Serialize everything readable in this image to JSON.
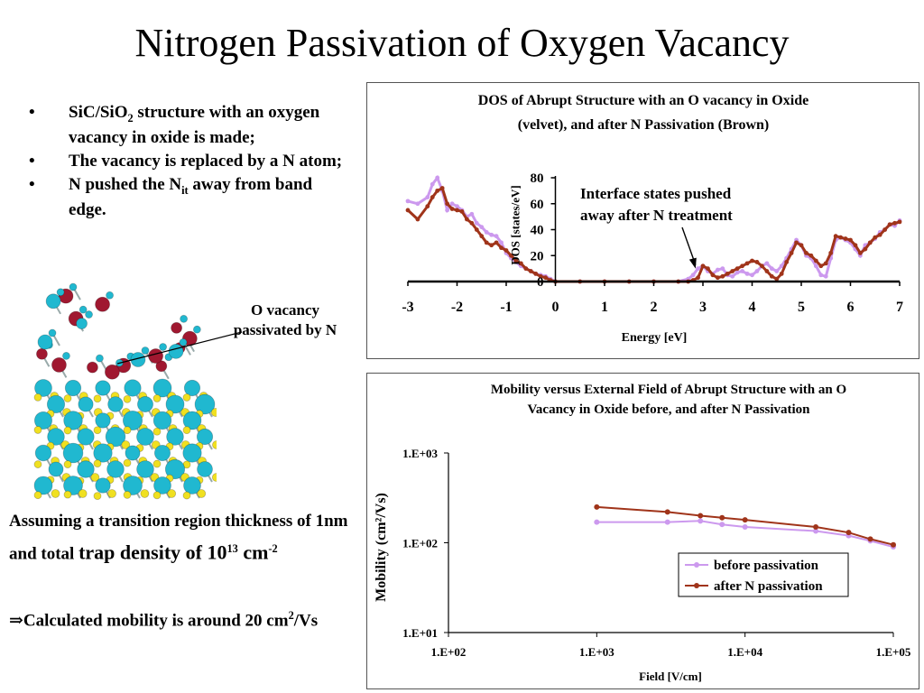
{
  "slide": {
    "title": "Nitrogen Passivation of Oxygen Vacancy",
    "bullets": [
      {
        "pre": "SiC/SiO",
        "sub": "2",
        "post": " structure with an oxygen vacancy in oxide is made;"
      },
      {
        "pre": "The vacancy is replaced by a N atom;",
        "sub": "",
        "post": ""
      },
      {
        "pre": "N pushed the N",
        "sub": "it",
        "post": " away from band edge."
      }
    ],
    "bullet_symbol": "•",
    "callout": "O vacancy passivated by N",
    "assumption": {
      "part1": "Assuming a transition region thickness of 1nm and total ",
      "part2": "trap density of 10",
      "sup": "13",
      "part3": " cm",
      "unit_sup": "-2"
    },
    "result": {
      "arrow": "⇒",
      "text": "Calculated mobility is around 20 cm",
      "sup": "2",
      "unit": "/Vs"
    }
  },
  "colors": {
    "velvet": "#cc99ee",
    "brown": "#a0341a",
    "si": "#f0e020",
    "c": "#20b8d0",
    "o": "#a01830"
  },
  "chart_data": [
    {
      "type": "line",
      "title": "DOS of Abrupt Structure with an O vacancy in Oxide (velvet), and after N Passivation (Brown)",
      "title_lines": [
        "DOS of Abrupt Structure with an O vacancy in Oxide",
        "(velvet), and after N Passivation (Brown)"
      ],
      "xlabel": "Energy [eV]",
      "ylabel": "DOS [states/eV]",
      "xlim": [
        -3,
        7
      ],
      "ylim": [
        0,
        80
      ],
      "xticks": [
        -3,
        -2,
        -1,
        0,
        1,
        2,
        3,
        4,
        5,
        6,
        7
      ],
      "yticks": [
        0,
        20,
        40,
        60,
        80
      ],
      "annotation": {
        "lines": [
          "Interface states pushed",
          "away after N treatment"
        ],
        "arrow_to": [
          2.85,
          10
        ]
      },
      "series": [
        {
          "color_key": "velvet",
          "x": [
            -3,
            -2.8,
            -2.6,
            -2.5,
            -2.4,
            -2.3,
            -2.2,
            -2.1,
            -2.0,
            -1.9,
            -1.8,
            -1.7,
            -1.6,
            -1.5,
            -1.4,
            -1.3,
            -1.2,
            -1.1,
            -1.0,
            -0.9,
            -0.8,
            -0.7,
            -0.6,
            -0.5,
            -0.4,
            -0.3,
            -0.2,
            -0.1,
            0.0,
            0.5,
            1.0,
            1.5,
            2.0,
            2.5,
            2.7,
            2.8,
            2.9,
            3.0,
            3.1,
            3.2,
            3.3,
            3.4,
            3.5,
            3.6,
            3.7,
            3.8,
            3.9,
            4.0,
            4.1,
            4.2,
            4.3,
            4.4,
            4.5,
            4.6,
            4.7,
            4.8,
            4.9,
            5.0,
            5.1,
            5.2,
            5.3,
            5.4,
            5.5,
            5.6,
            5.7,
            5.8,
            5.9,
            6.0,
            6.1,
            6.2,
            6.3,
            6.4,
            6.5,
            6.6,
            6.7,
            6.8,
            6.9,
            7.0
          ],
          "y": [
            62,
            60,
            65,
            75,
            80,
            70,
            55,
            60,
            58,
            55,
            50,
            52,
            45,
            42,
            38,
            36,
            35,
            30,
            22,
            18,
            15,
            12,
            10,
            8,
            6,
            5,
            4,
            2,
            0,
            0,
            0,
            0,
            0,
            0,
            2,
            5,
            10,
            12,
            8,
            6,
            9,
            10,
            5,
            4,
            7,
            8,
            6,
            5,
            8,
            12,
            14,
            10,
            8,
            12,
            18,
            25,
            32,
            28,
            20,
            18,
            12,
            5,
            4,
            18,
            32,
            34,
            32,
            30,
            25,
            20,
            28,
            30,
            33,
            38,
            40,
            44,
            43,
            47
          ]
        },
        {
          "color_key": "brown",
          "x": [
            -3,
            -2.8,
            -2.6,
            -2.5,
            -2.4,
            -2.3,
            -2.2,
            -2.1,
            -2.0,
            -1.9,
            -1.8,
            -1.7,
            -1.6,
            -1.5,
            -1.4,
            -1.3,
            -1.2,
            -1.1,
            -1.0,
            -0.9,
            -0.8,
            -0.7,
            -0.6,
            -0.5,
            -0.4,
            -0.3,
            -0.2,
            -0.1,
            0.0,
            0.5,
            1.0,
            1.5,
            2.0,
            2.5,
            2.7,
            2.8,
            2.9,
            3.0,
            3.1,
            3.2,
            3.3,
            3.4,
            3.5,
            3.6,
            3.7,
            3.8,
            3.9,
            4.0,
            4.1,
            4.2,
            4.3,
            4.4,
            4.5,
            4.6,
            4.7,
            4.8,
            4.9,
            5.0,
            5.1,
            5.2,
            5.3,
            5.4,
            5.5,
            5.6,
            5.7,
            5.8,
            5.9,
            6.0,
            6.1,
            6.2,
            6.3,
            6.4,
            6.5,
            6.6,
            6.7,
            6.8,
            6.9,
            7.0
          ],
          "y": [
            55,
            48,
            58,
            65,
            70,
            72,
            60,
            56,
            55,
            54,
            48,
            45,
            40,
            35,
            30,
            28,
            30,
            26,
            24,
            20,
            16,
            14,
            10,
            8,
            6,
            4,
            3,
            1,
            0,
            0,
            0,
            0,
            0,
            0,
            0,
            1,
            3,
            12,
            10,
            5,
            3,
            4,
            6,
            8,
            10,
            12,
            14,
            16,
            15,
            12,
            8,
            4,
            2,
            6,
            15,
            22,
            30,
            28,
            22,
            20,
            16,
            12,
            14,
            22,
            35,
            34,
            33,
            32,
            28,
            22,
            25,
            30,
            34,
            36,
            40,
            44,
            45,
            46
          ]
        }
      ]
    },
    {
      "type": "line",
      "title": "Mobility versus External Field of Abrupt Structure with an O Vacancy in Oxide before, and after N Passivation",
      "title_lines": [
        "Mobility versus External Field of Abrupt Structure with an O",
        "Vacancy in Oxide before, and after N Passivation"
      ],
      "xlabel": "Field [V/cm]",
      "ylabel": "Mobility (cm²/Vs)",
      "xscale": "log",
      "yscale": "log",
      "xlim": [
        100,
        100000
      ],
      "ylim": [
        10,
        1000
      ],
      "xticks": [
        "1.E+02",
        "1.E+03",
        "1.E+04",
        "1.E+05"
      ],
      "yticks": [
        "1.E+01",
        "1.E+02",
        "1.E+03"
      ],
      "legend_position": "lower-right",
      "series": [
        {
          "name": "before passivation",
          "color_key": "velvet",
          "x": [
            1000,
            3000,
            5000,
            7000,
            10000,
            30000,
            50000,
            70000,
            100000
          ],
          "y": [
            170,
            170,
            175,
            160,
            150,
            135,
            120,
            105,
            90
          ]
        },
        {
          "name": "after N passivation",
          "color_key": "brown",
          "x": [
            1000,
            3000,
            5000,
            7000,
            10000,
            30000,
            50000,
            70000,
            100000
          ],
          "y": [
            250,
            220,
            200,
            190,
            180,
            150,
            130,
            110,
            95
          ]
        }
      ]
    }
  ]
}
